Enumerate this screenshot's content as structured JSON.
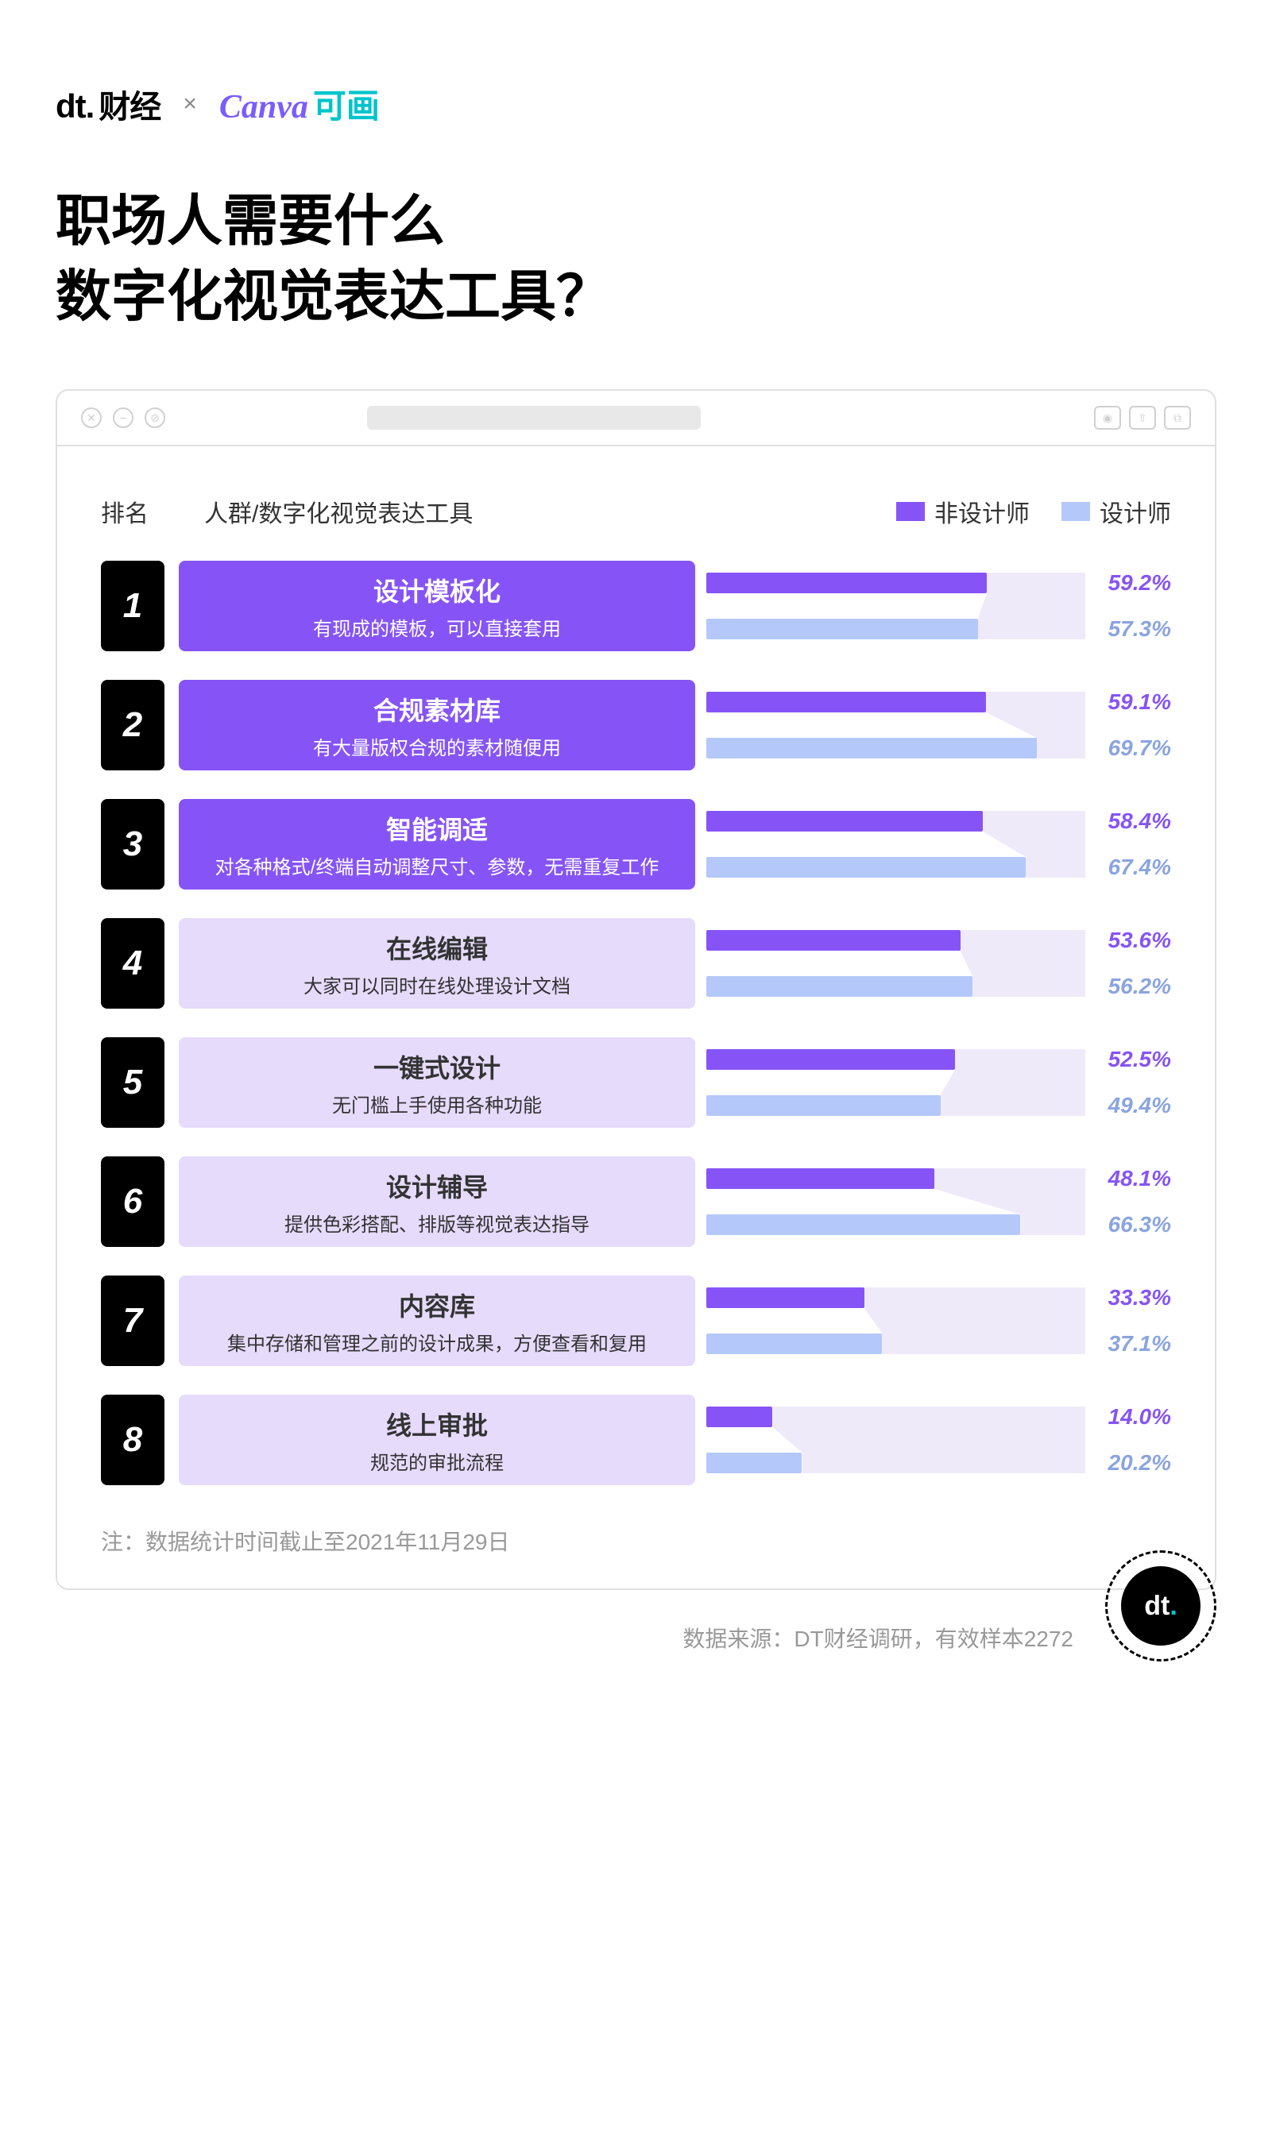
{
  "logos": {
    "dt": "dt.",
    "dt_suffix": "财经",
    "x": "×",
    "canva": "Canva",
    "canva_suffix": "可画"
  },
  "title_line1": "职场人需要什么",
  "title_line2": "数字化视觉表达工具？",
  "header": {
    "rank": "排名",
    "category": "人群/数字化视觉表达工具"
  },
  "legend": {
    "a_label": "非设计师",
    "b_label": "设计师",
    "a_color": "#8654f6",
    "b_color": "#b4c9f9"
  },
  "label_styles": {
    "dark_bg": "#8654f6",
    "dark_text": "#ffffff",
    "light_bg": "#e6dbfb",
    "light_text": "#333333"
  },
  "bar_max": 80,
  "rows": [
    {
      "rank": "1",
      "title": "设计模板化",
      "sub": "有现成的模板，可以直接套用",
      "emph": true,
      "a": 59.2,
      "b": 57.3
    },
    {
      "rank": "2",
      "title": "合规素材库",
      "sub": "有大量版权合规的素材随便用",
      "emph": true,
      "a": 59.1,
      "b": 69.7
    },
    {
      "rank": "3",
      "title": "智能调适",
      "sub": "对各种格式/终端自动调整尺寸、参数，无需重复工作",
      "emph": true,
      "a": 58.4,
      "b": 67.4
    },
    {
      "rank": "4",
      "title": "在线编辑",
      "sub": "大家可以同时在线处理设计文档",
      "emph": false,
      "a": 53.6,
      "b": 56.2
    },
    {
      "rank": "5",
      "title": "一键式设计",
      "sub": "无门槛上手使用各种功能",
      "emph": false,
      "a": 52.5,
      "b": 49.4
    },
    {
      "rank": "6",
      "title": "设计辅导",
      "sub": "提供色彩搭配、排版等视觉表达指导",
      "emph": false,
      "a": 48.1,
      "b": 66.3
    },
    {
      "rank": "7",
      "title": "内容库",
      "sub": "集中存储和管理之前的设计成果，方便查看和复用",
      "emph": false,
      "a": 33.3,
      "b": 37.1
    },
    {
      "rank": "8",
      "title": "线上审批",
      "sub": "规范的审批流程",
      "emph": false,
      "a": 14.0,
      "b": 20.2
    }
  ],
  "footnote": "注：数据统计时间截止至2021年11月29日",
  "source": "数据来源：DT财经调研，有效样本2272",
  "stamp": "dt"
}
